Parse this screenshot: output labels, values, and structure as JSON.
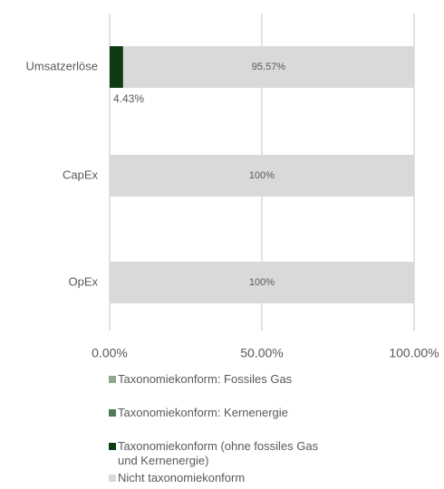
{
  "chart_data": {
    "type": "stacked_barh",
    "categories": [
      "Umsatzerlöse",
      "CapEx",
      "OpEx"
    ],
    "series": [
      {
        "name": "Taxonomiekonform: Fossiles Gas",
        "color": "#8fa68f",
        "values": [
          0,
          0,
          0
        ]
      },
      {
        "name": "Taxonomiekonform: Kernenergie",
        "color": "#4e7a57",
        "values": [
          0,
          0,
          0
        ]
      },
      {
        "name": "Taxonomiekonform (ohne fossiles Gas und Kernenergie)",
        "color": "#0d3b12",
        "values": [
          4.43,
          0,
          0
        ],
        "value_labels": [
          "4.43%",
          null,
          null
        ]
      },
      {
        "name": "Nicht taxonomiekonform",
        "color": "#d9d9d9",
        "values": [
          95.57,
          100,
          100
        ],
        "value_labels": [
          "95.57%",
          "100%",
          "100%"
        ]
      }
    ],
    "xlim": [
      0,
      100
    ],
    "xticks": [
      {
        "value": 0,
        "label": "0.00%"
      },
      {
        "value": 50,
        "label": "50.00%"
      },
      {
        "value": 100,
        "label": "100.00%"
      }
    ],
    "grid": true,
    "legend": "bottom"
  }
}
